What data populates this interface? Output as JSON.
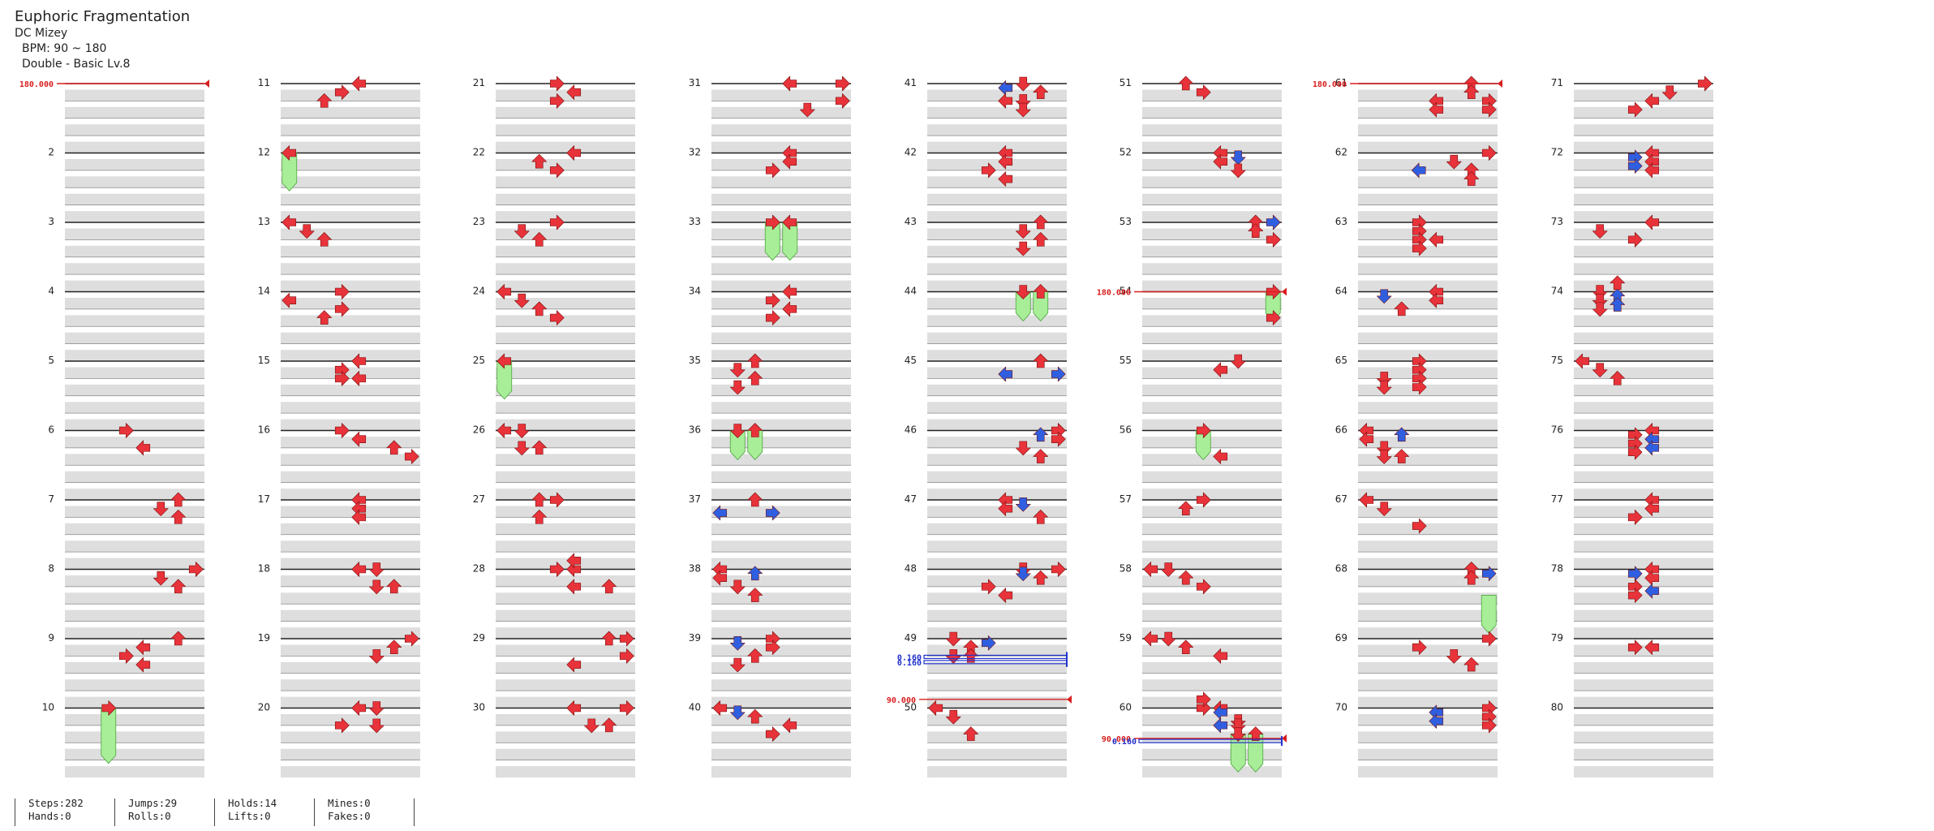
{
  "song": {
    "title": "Euphoric Fragmentation",
    "artist": "DC Mizey",
    "bpm": "BPM: 90 ~ 180",
    "difficulty": "Double - Basic Lv.8"
  },
  "measure_labels": [
    "11",
    "2",
    "12",
    "22",
    "32",
    "42",
    "52",
    "62",
    "72",
    "3",
    "13",
    "23",
    "33",
    "43",
    "53",
    "63",
    "73",
    "4",
    "14",
    "24",
    "34",
    "44",
    "54",
    "64",
    "74",
    "5",
    "15",
    "25",
    "35",
    "45",
    "55",
    "65",
    "75",
    "6",
    "16",
    "26",
    "36",
    "46",
    "56",
    "66",
    "76",
    "7",
    "17",
    "27",
    "37",
    "47",
    "57",
    "67",
    "77",
    "8",
    "18",
    "28",
    "38",
    "48",
    "58",
    "68",
    "78",
    "9",
    "19",
    "29",
    "39",
    "49",
    "59",
    "69",
    "79",
    "10",
    "20",
    "30",
    "40",
    "50",
    "60",
    "70",
    "80",
    "21",
    "31",
    "41",
    "51",
    "61",
    "71"
  ],
  "bpm_markers": [
    "180.000",
    "180.000",
    "180.000",
    "90.000",
    "90.000"
  ],
  "stop_markers": [
    "0.160",
    "0.160",
    "0.160"
  ],
  "stats": {
    "steps": "Steps:282",
    "jumps": "Jumps:29",
    "holds": "Holds:14",
    "mines": "Mines:0",
    "hands": "Hands:0",
    "rolls": "Rolls:0",
    "lifts": "Lifts:0",
    "fakes": "Fakes:0"
  },
  "colors": {
    "quarter_arrow": "#e8333a",
    "eighth_arrow": "#2f5fe0",
    "hold_body": "#a8ee98",
    "measure_band": "#dedede",
    "bpm_line": "#d81e1e",
    "stop_line": "#2233cc"
  },
  "icons": {
    "left": "arrow-left-icon",
    "down": "arrow-down-icon",
    "up": "arrow-up-icon",
    "right": "arrow-right-icon"
  },
  "measure_numbers": [
    2,
    3,
    4,
    5,
    6,
    7,
    8,
    9,
    10,
    11,
    12,
    13,
    14,
    15,
    16,
    17,
    18,
    19,
    20,
    21,
    22,
    23,
    24,
    25,
    26,
    27,
    28,
    29,
    30,
    31,
    32,
    33,
    34,
    35,
    36,
    37,
    38,
    39,
    40,
    41,
    42,
    43,
    44,
    45,
    46,
    47,
    48,
    49,
    50,
    51,
    52,
    53,
    54,
    55,
    56,
    57,
    58,
    59,
    60,
    61,
    62,
    63,
    64,
    65,
    66,
    67,
    68,
    69,
    70,
    71,
    72,
    73,
    74,
    75,
    76,
    77,
    78,
    79,
    80
  ]
}
